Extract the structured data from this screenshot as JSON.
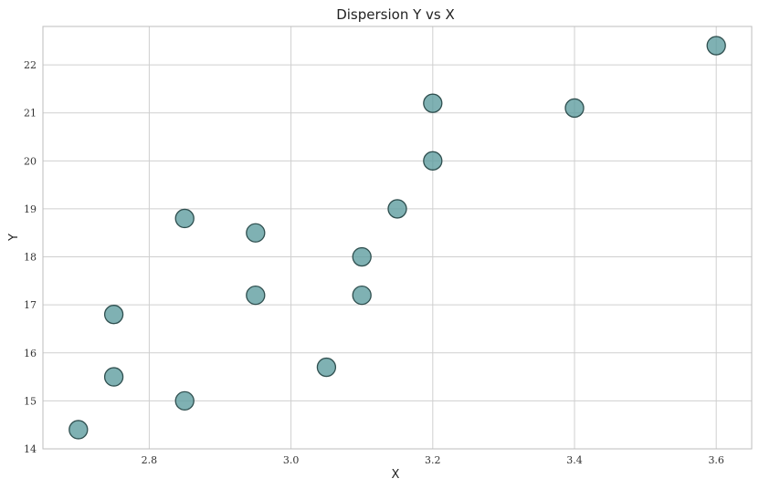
{
  "chart_data": {
    "type": "scatter",
    "title": "Dispersion Y vs X",
    "xlabel": "X",
    "ylabel": "Y",
    "xlim": [
      2.65,
      3.65
    ],
    "ylim": [
      14,
      22.8
    ],
    "xticks": [
      2.8,
      3.0,
      3.2,
      3.4,
      3.6
    ],
    "xtick_labels": [
      "2.8",
      "3.0",
      "3.2",
      "3.4",
      "3.6"
    ],
    "yticks": [
      14,
      15,
      16,
      17,
      18,
      19,
      20,
      21,
      22
    ],
    "ytick_labels": [
      "14",
      "15",
      "16",
      "17",
      "18",
      "19",
      "20",
      "21",
      "22"
    ],
    "grid": true,
    "colors": {
      "point_fill": "#5f9ea0",
      "point_edge": "#2f4f4f",
      "grid": "#cfcfcf",
      "frame": "#bdbdbd"
    },
    "series": [
      {
        "points": [
          {
            "x": 2.7,
            "y": 14.4
          },
          {
            "x": 2.75,
            "y": 15.5
          },
          {
            "x": 2.75,
            "y": 16.8
          },
          {
            "x": 2.85,
            "y": 15.0
          },
          {
            "x": 2.85,
            "y": 18.8
          },
          {
            "x": 2.95,
            "y": 17.2
          },
          {
            "x": 2.95,
            "y": 18.5
          },
          {
            "x": 3.05,
            "y": 15.7
          },
          {
            "x": 3.1,
            "y": 17.2
          },
          {
            "x": 3.1,
            "y": 18.0
          },
          {
            "x": 3.15,
            "y": 19.0
          },
          {
            "x": 3.2,
            "y": 20.0
          },
          {
            "x": 3.2,
            "y": 21.2
          },
          {
            "x": 3.4,
            "y": 21.1
          },
          {
            "x": 3.6,
            "y": 22.4
          }
        ]
      }
    ]
  }
}
